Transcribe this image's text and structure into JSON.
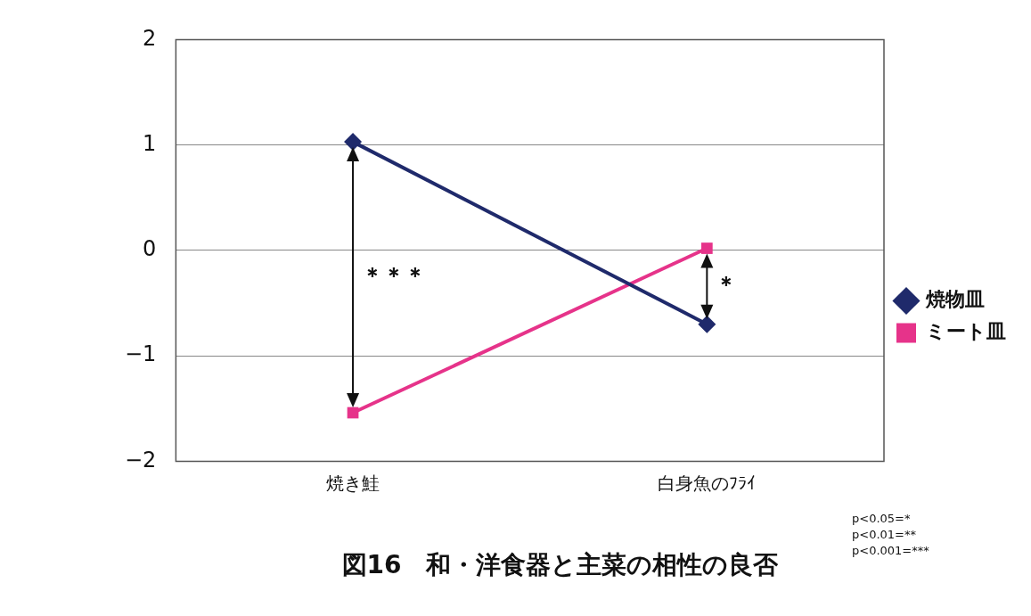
{
  "chart_data": {
    "type": "line",
    "title": "図16　和・洋食器と主菜の相性の良否",
    "categories": [
      "焼き鮭",
      "白身魚のﾌﾗｲ"
    ],
    "series": [
      {
        "name": "焼物皿",
        "color": "#1f2a6b",
        "marker": "diamond",
        "values": [
          1.03,
          -0.7
        ]
      },
      {
        "name": "ミート皿",
        "color": "#e6338a",
        "marker": "square",
        "values": [
          -1.54,
          0.02
        ]
      }
    ],
    "ylim": [
      -2,
      2
    ],
    "yticks": [
      {
        "value": -2,
        "label": "−2"
      },
      {
        "value": -1,
        "label": "−1"
      },
      0,
      1,
      2
    ],
    "grid": "y",
    "legend": "right",
    "annotations": [
      "＊＊＊",
      "＊",
      "p<0.05=*",
      "p<0.01=**",
      "p<0.001=***"
    ]
  }
}
